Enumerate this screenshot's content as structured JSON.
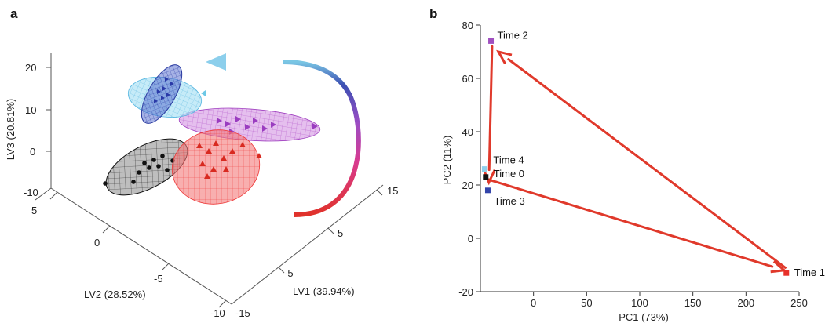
{
  "panels": {
    "a": "a",
    "b": "b"
  },
  "panel_a": {
    "type": "scatter3d",
    "axes": {
      "lv1": "LV1 (39.94%)",
      "lv2": "LV2 (28.52%)",
      "lv3": "LV3 (20.81%)"
    },
    "lv3_ticks": [
      "20",
      "10",
      "0",
      "-10"
    ],
    "lv2_ticks": [
      "5",
      "0",
      "-5",
      "-10"
    ],
    "lv1_ticks": [
      "15",
      "5",
      "-5",
      "-15"
    ],
    "colors": {
      "black": "#111111",
      "red": "#e8302a",
      "magenta": "#b04ac8",
      "blue": "#3344aa",
      "cyan": "#6cc8e6"
    },
    "markers": {
      "black": "circle",
      "red": "triangle",
      "magenta": "triangle-right",
      "blue": "triangle-right",
      "cyan": "triangle-left"
    }
  },
  "chart_data": {
    "type": "scatter",
    "title": "",
    "xlabel": "PC1 (73%)",
    "ylabel": "PC2 (11%)",
    "xlim": [
      -50,
      250
    ],
    "ylim": [
      -20,
      80
    ],
    "xticks": [
      0,
      50,
      100,
      150,
      200,
      250
    ],
    "yticks": [
      -20,
      0,
      20,
      40,
      60,
      80
    ],
    "points": [
      {
        "label": "Time 0",
        "x": -45,
        "y": 23,
        "color": "#111111"
      },
      {
        "label": "Time 1",
        "x": 238,
        "y": -13,
        "color": "#e8302a"
      },
      {
        "label": "Time 2",
        "x": -40,
        "y": 74,
        "color": "#a050c0"
      },
      {
        "label": "Time 3",
        "x": -43,
        "y": 18,
        "color": "#3344aa"
      },
      {
        "label": "Time 4",
        "x": -46,
        "y": 26,
        "color": "#8fd0ec"
      }
    ],
    "arrows": [
      {
        "from": [
          -42,
          22
        ],
        "to": [
          236,
          -12
        ]
      },
      {
        "from": [
          237,
          -11
        ],
        "to": [
          -33,
          70
        ]
      },
      {
        "from": [
          -39,
          72
        ],
        "to": [
          -42,
          21
        ]
      }
    ],
    "arrow_color": "#e0392b"
  }
}
